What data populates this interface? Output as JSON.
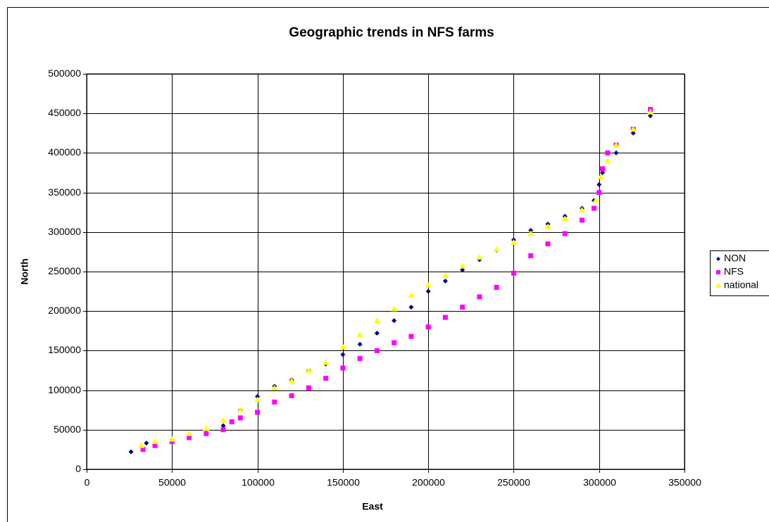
{
  "chart_data": {
    "type": "scatter",
    "title": "Geographic trends in NFS farms",
    "x_label": "East",
    "y_label": "North",
    "xlim": [
      0,
      350000
    ],
    "xticks": [
      0,
      50000,
      100000,
      150000,
      200000,
      250000,
      300000,
      350000
    ],
    "ylim": [
      0,
      500000
    ],
    "yticks": [
      0,
      50000,
      100000,
      150000,
      200000,
      250000,
      300000,
      350000,
      400000,
      450000,
      500000
    ],
    "grid": true,
    "legend": "right",
    "series": [
      {
        "name": "NON",
        "color": "#000080",
        "marker": "diamond",
        "x": [
          26000,
          35000,
          40000,
          50000,
          60000,
          70000,
          80000,
          90000,
          100000,
          110000,
          120000,
          130000,
          140000,
          150000,
          160000,
          170000,
          180000,
          190000,
          200000,
          210000,
          220000,
          230000,
          240000,
          250000,
          260000,
          270000,
          280000,
          290000,
          297000,
          300000,
          302000,
          310000,
          320000,
          330000
        ],
        "values": [
          22000,
          33000,
          33000,
          37000,
          41000,
          46000,
          55000,
          75000,
          92000,
          105000,
          113000,
          125000,
          133000,
          145000,
          158000,
          172000,
          188000,
          205000,
          225000,
          238000,
          252000,
          265000,
          277000,
          290000,
          302000,
          310000,
          320000,
          330000,
          340000,
          360000,
          375000,
          400000,
          425000,
          447000
        ]
      },
      {
        "name": "NFS",
        "color": "#FF00FF",
        "marker": "square",
        "x": [
          33000,
          40000,
          50000,
          60000,
          70000,
          80000,
          85000,
          90000,
          100000,
          110000,
          120000,
          130000,
          140000,
          150000,
          160000,
          170000,
          180000,
          190000,
          200000,
          210000,
          220000,
          230000,
          240000,
          250000,
          260000,
          270000,
          280000,
          290000,
          297000,
          300000,
          302000,
          305000,
          310000,
          320000,
          330000
        ],
        "values": [
          25000,
          30000,
          35000,
          40000,
          45000,
          50000,
          60000,
          65000,
          72000,
          85000,
          93000,
          103000,
          115000,
          128000,
          140000,
          150000,
          160000,
          168000,
          180000,
          192000,
          205000,
          218000,
          230000,
          248000,
          270000,
          285000,
          298000,
          315000,
          330000,
          350000,
          380000,
          400000,
          410000,
          430000,
          455000
        ]
      },
      {
        "name": "national",
        "color": "#FFFF00",
        "marker": "triangle",
        "x": [
          32000,
          40000,
          50000,
          60000,
          70000,
          80000,
          90000,
          100000,
          110000,
          120000,
          130000,
          140000,
          150000,
          160000,
          170000,
          180000,
          190000,
          200000,
          210000,
          220000,
          230000,
          240000,
          250000,
          260000,
          270000,
          280000,
          290000,
          298000,
          301000,
          305000,
          310000,
          320000,
          330000
        ],
        "values": [
          30000,
          35000,
          38000,
          45000,
          52000,
          62000,
          75000,
          88000,
          103000,
          112000,
          125000,
          135000,
          155000,
          170000,
          188000,
          203000,
          220000,
          233000,
          245000,
          257000,
          268000,
          278000,
          287000,
          298000,
          307000,
          317000,
          328000,
          340000,
          370000,
          390000,
          410000,
          430000,
          452000
        ]
      }
    ]
  }
}
